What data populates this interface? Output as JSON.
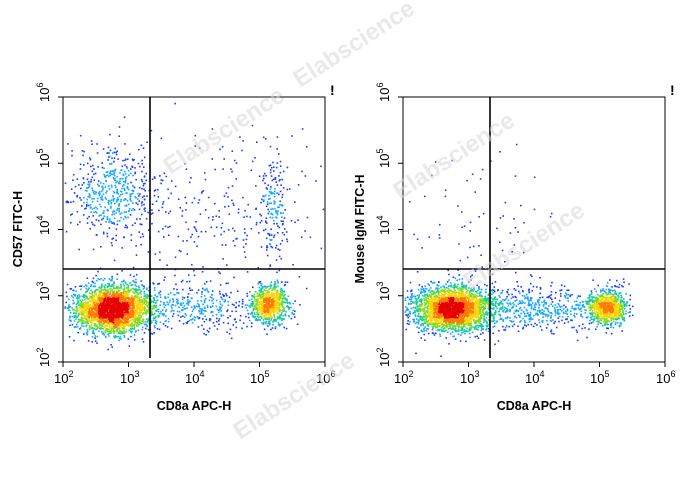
{
  "watermark": "Elabscience",
  "chart_data": [
    {
      "type": "scatter",
      "subtype": "flow-cytometry-density-dot-plot",
      "xlabel": "CD8a APC-H",
      "ylabel": "CD57 FITC-H",
      "xscale": "log",
      "yscale": "log",
      "xlim": [
        100,
        1000000
      ],
      "ylim": [
        100,
        1000000
      ],
      "x_ticks": [
        "10^2",
        "10^3",
        "10^4",
        "10^5",
        "10^6"
      ],
      "y_ticks": [
        "10^2",
        "10^3",
        "10^4",
        "10^5",
        "10^6"
      ],
      "gate": {
        "x": 2200,
        "y": 2300
      },
      "flag": "!",
      "populations": [
        {
          "name": "CD8- CD57- cluster",
          "x": 550,
          "y": 650,
          "count": 2600
        },
        {
          "name": "CD8+ CD57- cluster",
          "x": 140000,
          "y": 750,
          "count": 700
        },
        {
          "name": "CD8- CD57+ cells",
          "x": 550,
          "y": 35000,
          "count": 500
        },
        {
          "name": "CD8+ CD57+ cells",
          "x": 160000,
          "y": 20000,
          "count": 150
        },
        {
          "name": "intermediate CD8 events",
          "x": 12000,
          "y": 700,
          "count": 350
        },
        {
          "name": "scattered events",
          "x": 20000,
          "y": 20000,
          "count": 260
        }
      ]
    },
    {
      "type": "scatter",
      "subtype": "flow-cytometry-density-dot-plot",
      "xlabel": "CD8a APC-H",
      "ylabel": "Mouse IgM FITC-H",
      "xscale": "log",
      "yscale": "log",
      "xlim": [
        100,
        1000000
      ],
      "ylim": [
        100,
        1000000
      ],
      "x_ticks": [
        "10^2",
        "10^3",
        "10^4",
        "10^5",
        "10^6"
      ],
      "y_ticks": [
        "10^2",
        "10^3",
        "10^4",
        "10^5",
        "10^6"
      ],
      "gate": {
        "x": 2200,
        "y": 2300
      },
      "flag": "!",
      "populations": [
        {
          "name": "CD8- IgM- cluster",
          "x": 550,
          "y": 650,
          "count": 2600
        },
        {
          "name": "CD8+ IgM- cluster",
          "x": 130000,
          "y": 700,
          "count": 750
        },
        {
          "name": "intermediate CD8 events",
          "x": 10000,
          "y": 650,
          "count": 500
        },
        {
          "name": "sparse positive events",
          "x": 1500,
          "y": 8000,
          "count": 80
        }
      ]
    }
  ]
}
